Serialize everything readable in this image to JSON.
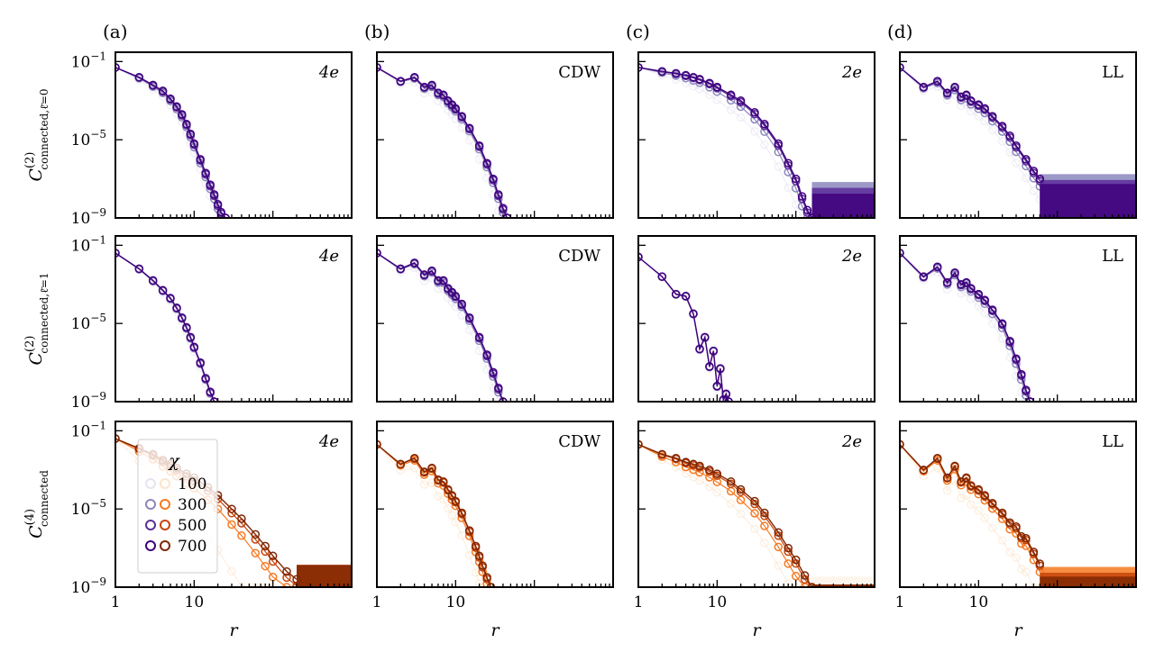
{
  "chart_data": {
    "type": "line",
    "description_scale": "log-log",
    "xlabel": "r",
    "xlim": [
      1,
      1000
    ],
    "ylim": [
      1e-09,
      0.3
    ],
    "x_ticks": [
      "1",
      "10"
    ],
    "y_ticks": [
      {
        "base": "10",
        "exp": "−1"
      },
      {
        "base": "10",
        "exp": "−5"
      },
      {
        "base": "10",
        "exp": "−9"
      }
    ],
    "column_labels": [
      "(a)",
      "(b)",
      "(c)",
      "(d)"
    ],
    "panel_tags": [
      "4e",
      "CDW",
      "2e",
      "LL"
    ],
    "row_ylabels": [
      {
        "main": "C",
        "sup": "(2)",
        "sub": "connected,ℓ̄=0"
      },
      {
        "main": "C",
        "sup": "(2)",
        "sub": "connected,ℓ̄=1"
      },
      {
        "main": "C",
        "sup": "(4)",
        "sub": "connected"
      }
    ],
    "legend": {
      "title": "χ",
      "entries": [
        "100",
        "300",
        "500",
        "700"
      ]
    },
    "chi_values": [
      100,
      300,
      500,
      700
    ],
    "palettes": {
      "purple": [
        "#e6e3f0",
        "#8c87bd",
        "#5c2d9a",
        "#3f007d"
      ],
      "orange": [
        "#fbe4cc",
        "#f57a22",
        "#c6440b",
        "#7f2704"
      ]
    },
    "panels": [
      {
        "row": 0,
        "col": 0,
        "tag": "4e",
        "palette": "purple",
        "r_points": [
          1,
          2,
          3,
          4,
          5,
          6,
          7,
          8,
          9,
          10,
          12,
          14,
          16,
          18,
          20,
          22,
          25
        ],
        "log10C": [
          -1.3,
          -1.8,
          -2.2,
          -2.5,
          -2.9,
          -3.3,
          -3.7,
          -4.2,
          -4.7,
          -5.2,
          -6.0,
          -6.7,
          -7.3,
          -7.8,
          -8.3,
          -8.7,
          -9.0
        ],
        "spread": [
          0.4,
          0.15,
          0.05,
          0
        ]
      },
      {
        "row": 0,
        "col": 1,
        "tag": "CDW",
        "palette": "purple",
        "r_points": [
          1,
          2,
          3,
          4,
          5,
          6,
          7,
          8,
          9,
          10,
          12,
          15,
          20,
          25,
          30,
          35,
          40,
          45
        ],
        "log10C": [
          -1.3,
          -2.0,
          -1.8,
          -2.3,
          -2.2,
          -2.6,
          -2.7,
          -3.0,
          -3.2,
          -3.4,
          -3.8,
          -4.4,
          -5.3,
          -6.2,
          -7.0,
          -7.8,
          -8.5,
          -9.0
        ],
        "spread": [
          0.45,
          0.12,
          0.04,
          0
        ]
      },
      {
        "row": 0,
        "col": 2,
        "tag": "2e",
        "palette": "purple",
        "r_points": [
          1,
          2,
          3,
          4,
          5,
          6,
          8,
          10,
          15,
          20,
          30,
          40,
          60,
          80,
          100,
          120,
          140,
          160
        ],
        "log10C": [
          -1.3,
          -1.5,
          -1.6,
          -1.7,
          -1.8,
          -1.9,
          -2.1,
          -2.3,
          -2.7,
          -3.0,
          -3.6,
          -4.2,
          -5.2,
          -6.2,
          -7.0,
          -7.9,
          -8.6,
          -9.0
        ],
        "spread": [
          0.55,
          0.2,
          0.05,
          0
        ],
        "floor": [
          -7.8,
          -7.3,
          -7.6,
          -7.9
        ]
      },
      {
        "row": 0,
        "col": 3,
        "tag": "LL",
        "palette": "purple",
        "r_points": [
          1,
          2,
          3,
          4,
          5,
          6,
          7,
          8,
          10,
          12,
          15,
          20,
          25,
          30,
          40,
          50,
          60
        ],
        "log10C": [
          -1.3,
          -2.3,
          -2.0,
          -2.6,
          -2.3,
          -2.8,
          -2.7,
          -3.0,
          -3.2,
          -3.4,
          -3.8,
          -4.3,
          -4.8,
          -5.3,
          -6.0,
          -6.6,
          -7.0
        ],
        "spread": [
          0.5,
          0.18,
          0.05,
          0
        ],
        "floor": [
          -6.9,
          -6.9,
          -7.2,
          -7.4
        ]
      },
      {
        "row": 1,
        "col": 0,
        "tag": "4e",
        "palette": "purple",
        "r_points": [
          1,
          2,
          3,
          4,
          5,
          6,
          7,
          8,
          9,
          10,
          12,
          14,
          16,
          18
        ],
        "log10C": [
          -1.4,
          -2.2,
          -2.8,
          -3.3,
          -3.7,
          -4.2,
          -4.7,
          -5.2,
          -5.7,
          -6.2,
          -7.0,
          -7.8,
          -8.5,
          -9.0
        ],
        "spread": [
          0.2,
          0.06,
          0.02,
          0
        ]
      },
      {
        "row": 1,
        "col": 1,
        "tag": "CDW",
        "palette": "purple",
        "r_points": [
          1,
          2,
          3,
          4,
          5,
          6,
          7,
          8,
          9,
          10,
          12,
          15,
          20,
          25,
          30,
          35,
          40
        ],
        "log10C": [
          -1.4,
          -2.2,
          -1.9,
          -2.5,
          -2.3,
          -2.8,
          -2.8,
          -3.2,
          -3.4,
          -3.6,
          -4.0,
          -4.7,
          -5.7,
          -6.6,
          -7.5,
          -8.3,
          -9.0
        ],
        "spread": [
          0.45,
          0.12,
          0.04,
          0
        ]
      },
      {
        "row": 1,
        "col": 2,
        "tag": "2e",
        "palette": "purple",
        "r_points": [
          1,
          2,
          3,
          4,
          5,
          6,
          7,
          8,
          9,
          10,
          11,
          12,
          13,
          14
        ],
        "log10C": [
          -1.6,
          -2.6,
          -3.5,
          -3.6,
          -4.5,
          -6.3,
          -5.7,
          -7.2,
          -6.4,
          -8.2,
          -7.3,
          -8.9,
          -8.6,
          -9.0
        ],
        "spread": [
          0.1,
          0.03,
          0.01,
          0
        ]
      },
      {
        "row": 1,
        "col": 3,
        "tag": "LL",
        "palette": "purple",
        "r_points": [
          1,
          2,
          3,
          4,
          5,
          6,
          7,
          8,
          10,
          12,
          15,
          20,
          25,
          30,
          35,
          40,
          45
        ],
        "log10C": [
          -1.4,
          -2.6,
          -2.1,
          -2.9,
          -2.4,
          -3.0,
          -2.9,
          -3.2,
          -3.5,
          -3.8,
          -4.3,
          -5.0,
          -5.9,
          -6.8,
          -7.6,
          -8.4,
          -9.0
        ],
        "spread": [
          0.5,
          0.15,
          0.04,
          0
        ]
      },
      {
        "row": 2,
        "col": 0,
        "tag": "4e",
        "palette": "orange",
        "r_points": [
          1,
          2,
          3,
          4,
          5,
          6,
          8,
          10,
          15,
          20,
          30,
          40,
          60,
          80,
          100,
          150,
          200
        ],
        "log10C": [
          -1.4,
          -1.9,
          -2.2,
          -2.5,
          -2.7,
          -2.9,
          -3.2,
          -3.4,
          -3.9,
          -4.3,
          -5.0,
          -5.5,
          -6.3,
          -6.9,
          -7.4,
          -8.2,
          -8.6
        ],
        "spread": [
          1.8,
          0.45,
          0.12,
          0
        ],
        "floor": [
          -9.0,
          -8.0,
          -8.0,
          -8.0
        ]
      },
      {
        "row": 2,
        "col": 1,
        "tag": "CDW",
        "palette": "orange",
        "r_points": [
          1,
          2,
          3,
          4,
          5,
          6,
          7,
          8,
          9,
          10,
          12,
          15,
          18,
          20,
          22,
          25,
          28
        ],
        "log10C": [
          -1.7,
          -2.7,
          -2.4,
          -3.1,
          -2.9,
          -3.5,
          -3.6,
          -4.0,
          -4.3,
          -4.6,
          -5.2,
          -6.1,
          -6.9,
          -7.4,
          -7.9,
          -8.5,
          -9.0
        ],
        "spread": [
          0.9,
          0.2,
          0.05,
          0
        ]
      },
      {
        "row": 2,
        "col": 2,
        "tag": "2e",
        "palette": "orange",
        "r_points": [
          1,
          2,
          3,
          4,
          5,
          6,
          8,
          10,
          15,
          20,
          30,
          40,
          60,
          80,
          100,
          130,
          160
        ],
        "log10C": [
          -1.7,
          -2.2,
          -2.4,
          -2.6,
          -2.7,
          -2.8,
          -3.0,
          -3.2,
          -3.6,
          -4.0,
          -4.6,
          -5.2,
          -6.2,
          -7.0,
          -7.6,
          -8.4,
          -9.0
        ],
        "spread": [
          0.8,
          0.35,
          0.08,
          0
        ],
        "floor": [
          -8.6,
          -9.0,
          -9.0,
          -9.0
        ]
      },
      {
        "row": 2,
        "col": 3,
        "tag": "LL",
        "palette": "orange",
        "r_points": [
          1,
          2,
          3,
          4,
          5,
          6,
          7,
          8,
          10,
          12,
          15,
          20,
          25,
          30,
          35,
          40,
          50,
          60
        ],
        "log10C": [
          -1.7,
          -3.0,
          -2.4,
          -3.4,
          -2.8,
          -3.6,
          -3.4,
          -3.8,
          -4.0,
          -4.3,
          -4.7,
          -5.2,
          -5.7,
          -5.9,
          -6.4,
          -6.5,
          -7.2,
          -7.8
        ],
        "spread": [
          0.9,
          0.2,
          0.05,
          0
        ],
        "floor": [
          -8.1,
          -8.1,
          -8.4,
          -8.6
        ]
      }
    ]
  }
}
